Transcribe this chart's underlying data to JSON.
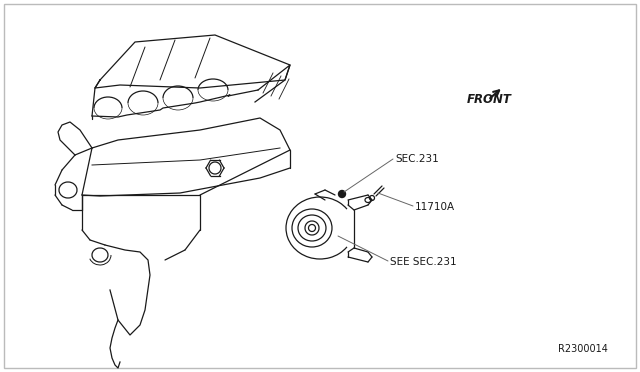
{
  "background_color": "#ffffff",
  "border_color": "#bbbbbb",
  "line_color": "#1a1a1a",
  "text_color": "#1a1a1a",
  "leader_color": "#666666",
  "label_front": "FRONT",
  "label_sec231": "SEC.231",
  "label_see_sec231": "SEE SEC.231",
  "label_part": "11710A",
  "label_ref": "R2300014",
  "fig_width": 6.4,
  "fig_height": 3.72,
  "dpi": 100
}
